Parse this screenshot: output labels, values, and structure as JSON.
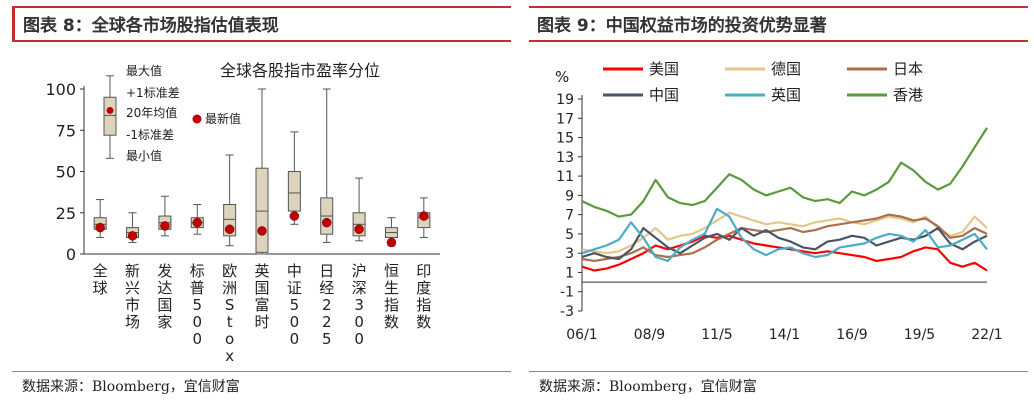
{
  "left": {
    "title": "图表 8：全球各市场股指估值表现",
    "source": "数据来源：Bloomberg，宜信财富"
  },
  "right": {
    "title": "图表 9：中国权益市场的投资优势显著",
    "source": "数据来源：Bloomberg，宜信财富"
  },
  "colors": {
    "box_fill": "#ddd4bd",
    "box_stroke": "#555555",
    "dot": "#c00000",
    "title_rule": "#c62d2d",
    "美国": "#ff0000",
    "德国": "#e3c78a",
    "日本": "#a9704b",
    "中国": "#4a5563",
    "英国": "#4bacc6",
    "香港": "#5b9a3c"
  },
  "chart_data": [
    {
      "type": "box",
      "title": "全球各股指市盈率分位",
      "legend": [
        "最大值",
        "+1标准差",
        "20年均值",
        "-1标准差",
        "最小值",
        "最新值"
      ],
      "ylim": [
        0,
        100
      ],
      "yticks": [
        0,
        25,
        50,
        75,
        100
      ],
      "categories": [
        "全球",
        "新兴市场",
        "发达国家",
        "标普500",
        "欧洲Stoxx",
        "英国富时",
        "中证500",
        "日经225",
        "沪深300",
        "恒生指数",
        "印度指数"
      ],
      "series": [
        {
          "name": "最大值",
          "values": [
            33,
            25,
            35,
            30,
            60,
            100,
            74,
            100,
            46,
            22,
            34
          ]
        },
        {
          "name": "+1标准差",
          "values": [
            22,
            16,
            23,
            22,
            30,
            52,
            50,
            34,
            25,
            16,
            25
          ]
        },
        {
          "name": "20年均值",
          "values": [
            18,
            13,
            19,
            19,
            21,
            26,
            37,
            23,
            18,
            13,
            22
          ]
        },
        {
          "name": "-1标准差",
          "values": [
            15,
            10,
            15,
            16,
            11,
            1,
            26,
            12,
            11,
            10,
            16
          ]
        },
        {
          "name": "最小值",
          "values": [
            10,
            7,
            11,
            12,
            5,
            0,
            18,
            7,
            8,
            5,
            10
          ]
        },
        {
          "name": "最新值",
          "values": [
            16,
            11,
            17,
            19,
            15,
            14,
            23,
            19,
            15,
            7,
            23
          ]
        }
      ]
    },
    {
      "type": "line",
      "ylabel": "%",
      "ylim": [
        -3,
        19
      ],
      "yticks": [
        -3,
        -1,
        1,
        3,
        5,
        7,
        9,
        11,
        13,
        15,
        17,
        19
      ],
      "x": [
        "06/1",
        "06/7",
        "07/1",
        "07/7",
        "08/1",
        "08/7",
        "09/1",
        "09/7",
        "10/1",
        "10/7",
        "11/1",
        "11/7",
        "12/1",
        "12/7",
        "13/1",
        "13/7",
        "14/1",
        "14/7",
        "15/1",
        "15/7",
        "16/1",
        "16/7",
        "17/1",
        "17/7",
        "18/1",
        "18/7",
        "19/1",
        "19/7",
        "20/1",
        "20/7",
        "21/1",
        "21/7",
        "22/1",
        "22/7"
      ],
      "xtick_labels": [
        "06/1",
        "08/9",
        "11/5",
        "14/1",
        "16/9",
        "19/5",
        "22/1"
      ],
      "series": [
        {
          "name": "美国",
          "values": [
            1.6,
            1.2,
            1.4,
            1.8,
            2.4,
            3.0,
            3.8,
            3.4,
            3.8,
            4.2,
            4.8,
            4.6,
            4.8,
            4.4,
            4.0,
            3.8,
            3.6,
            3.4,
            3.2,
            3.0,
            3.2,
            3.0,
            2.8,
            2.6,
            2.2,
            2.4,
            2.6,
            3.2,
            3.6,
            3.4,
            2.0,
            1.6,
            2.0,
            1.2
          ]
        },
        {
          "name": "德国",
          "values": [
            3.4,
            3.2,
            3.0,
            3.2,
            3.8,
            4.6,
            5.6,
            4.4,
            4.8,
            5.0,
            5.6,
            6.4,
            7.2,
            6.8,
            6.4,
            6.0,
            6.2,
            6.0,
            5.8,
            6.2,
            6.4,
            6.6,
            6.2,
            6.0,
            6.4,
            6.8,
            6.6,
            6.2,
            6.8,
            5.6,
            4.8,
            5.2,
            6.8,
            5.6
          ]
        },
        {
          "name": "日本",
          "values": [
            2.4,
            2.2,
            2.4,
            2.6,
            3.0,
            3.6,
            2.8,
            2.6,
            2.8,
            3.0,
            3.6,
            4.4,
            5.0,
            5.6,
            5.4,
            5.2,
            5.4,
            5.6,
            5.2,
            5.4,
            5.8,
            6.0,
            6.2,
            6.4,
            6.6,
            7.0,
            6.8,
            6.4,
            6.6,
            5.8,
            4.6,
            4.8,
            5.6,
            5.0
          ]
        },
        {
          "name": "中国",
          "values": [
            2.6,
            3.0,
            2.6,
            2.4,
            3.4,
            5.6,
            4.6,
            3.6,
            3.0,
            3.8,
            4.6,
            5.0,
            4.4,
            5.6,
            4.8,
            5.4,
            4.6,
            4.2,
            3.6,
            3.4,
            4.2,
            4.4,
            4.8,
            4.6,
            3.8,
            4.2,
            4.6,
            4.4,
            4.8,
            5.6,
            4.0,
            3.4,
            4.2,
            4.8
          ]
        },
        {
          "name": "英国",
          "values": [
            3.0,
            3.4,
            3.8,
            4.4,
            6.2,
            4.6,
            2.6,
            2.2,
            3.6,
            4.4,
            5.0,
            7.6,
            6.8,
            4.6,
            3.4,
            2.8,
            3.4,
            3.6,
            3.0,
            2.6,
            2.8,
            3.6,
            3.8,
            4.0,
            4.6,
            5.0,
            4.8,
            4.2,
            5.4,
            3.6,
            3.8,
            4.4,
            5.0,
            3.4
          ]
        },
        {
          "name": "香港",
          "values": [
            8.4,
            7.8,
            7.4,
            6.8,
            7.0,
            8.4,
            10.6,
            8.8,
            8.2,
            8.0,
            8.4,
            9.8,
            11.2,
            10.6,
            9.6,
            9.0,
            9.4,
            9.8,
            8.8,
            8.4,
            8.6,
            8.2,
            9.4,
            9.0,
            9.6,
            10.4,
            12.4,
            11.6,
            10.4,
            9.6,
            10.2,
            12.0,
            14.0,
            16.0
          ]
        }
      ]
    }
  ]
}
